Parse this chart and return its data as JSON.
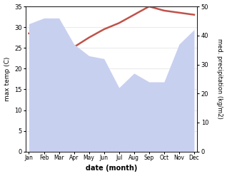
{
  "months": [
    "Jan",
    "Feb",
    "Mar",
    "Apr",
    "May",
    "Jun",
    "Jul",
    "Aug",
    "Sep",
    "Oct",
    "Nov",
    "Dec"
  ],
  "month_indices": [
    0,
    1,
    2,
    3,
    4,
    5,
    6,
    7,
    8,
    9,
    10,
    11
  ],
  "max_temp": [
    28.5,
    28.0,
    25.5,
    25.2,
    27.5,
    29.5,
    31.0,
    33.0,
    35.0,
    34.0,
    33.5,
    33.0
  ],
  "precipitation": [
    44.0,
    46.0,
    46.0,
    37.0,
    33.0,
    32.0,
    22.0,
    27.0,
    24.0,
    24.0,
    37.0,
    42.0
  ],
  "temp_color": "#c0524a",
  "precip_fill_color": "#c8d0f0",
  "temp_ylim": [
    0,
    35
  ],
  "precip_ylim": [
    0,
    50
  ],
  "temp_yticks": [
    0,
    5,
    10,
    15,
    20,
    25,
    30,
    35
  ],
  "precip_yticks": [
    0,
    10,
    20,
    30,
    40,
    50
  ],
  "xlabel": "date (month)",
  "ylabel_left": "max temp (C)",
  "ylabel_right": "med. precipitation (kg/m2)",
  "background_color": "#ffffff",
  "grid_color": "#e0e0e0"
}
